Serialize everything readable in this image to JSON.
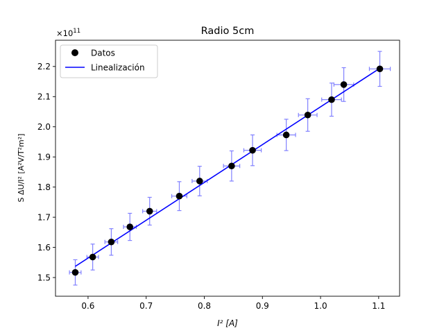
{
  "chart_data": {
    "type": "scatter",
    "title": "Radio 5cm",
    "xlabel": "I² [A]",
    "ylabel": "S ΔU/I² [A²V/T²m²]",
    "y_multiplier_label": "×10",
    "y_multiplier_exp": "11",
    "xlim": [
      0.544,
      1.136
    ],
    "ylim": [
      1.438,
      2.287
    ],
    "xticks": [
      0.6,
      0.7,
      0.8,
      0.9,
      1.0,
      1.1
    ],
    "yticks": [
      1.5,
      1.6,
      1.7,
      1.8,
      1.9,
      2.0,
      2.1,
      2.2
    ],
    "grid": false,
    "legend_position": "top-left",
    "series": [
      {
        "name": "Datos",
        "kind": "points",
        "color": "#000000",
        "error_color": "#8080ff",
        "points": [
          {
            "x": 0.578,
            "y": 1.517,
            "xerr": 0.01,
            "yerr": 0.042
          },
          {
            "x": 0.608,
            "y": 1.568,
            "xerr": 0.01,
            "yerr": 0.043
          },
          {
            "x": 0.64,
            "y": 1.618,
            "xerr": 0.011,
            "yerr": 0.044
          },
          {
            "x": 0.672,
            "y": 1.668,
            "xerr": 0.011,
            "yerr": 0.045
          },
          {
            "x": 0.706,
            "y": 1.72,
            "xerr": 0.012,
            "yerr": 0.046
          },
          {
            "x": 0.757,
            "y": 1.77,
            "xerr": 0.013,
            "yerr": 0.048
          },
          {
            "x": 0.792,
            "y": 1.82,
            "xerr": 0.013,
            "yerr": 0.049
          },
          {
            "x": 0.847,
            "y": 1.87,
            "xerr": 0.014,
            "yerr": 0.05
          },
          {
            "x": 0.883,
            "y": 1.922,
            "xerr": 0.015,
            "yerr": 0.051
          },
          {
            "x": 0.941,
            "y": 1.973,
            "xerr": 0.016,
            "yerr": 0.052
          },
          {
            "x": 0.978,
            "y": 2.039,
            "xerr": 0.016,
            "yerr": 0.054
          },
          {
            "x": 1.019,
            "y": 2.09,
            "xerr": 0.017,
            "yerr": 0.055
          },
          {
            "x": 1.04,
            "y": 2.14,
            "xerr": 0.017,
            "yerr": 0.056
          },
          {
            "x": 1.102,
            "y": 2.192,
            "xerr": 0.018,
            "yerr": 0.058
          }
        ]
      },
      {
        "name": "Linealización",
        "kind": "line",
        "color": "#0000ff",
        "x": [
          0.578,
          1.102
        ],
        "y": [
          1.537,
          2.194
        ]
      }
    ]
  }
}
